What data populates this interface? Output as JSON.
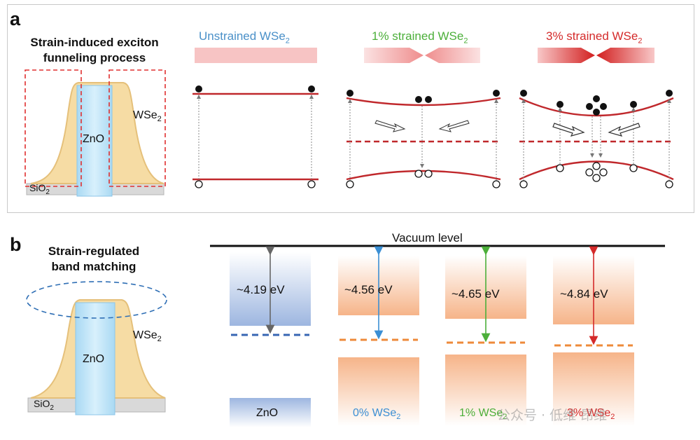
{
  "panel_a": {
    "label": "a",
    "title_line1": "Strain-induced exciton",
    "title_line2": "funneling process",
    "material_label": "WSe",
    "material_sub": "2",
    "pillar_label": "ZnO",
    "substrate_label": "SiO",
    "substrate_sub": "2",
    "states": [
      {
        "title": "Unstrained WSe",
        "sub": "2",
        "color": "#4a90c8"
      },
      {
        "title": "1% strained WSe",
        "sub": "2",
        "color": "#4caf3a"
      },
      {
        "title": "3% strained WSe",
        "sub": "2",
        "color": "#d42a2a"
      }
    ]
  },
  "panel_b": {
    "label": "b",
    "title_line1": "Strain-regulated",
    "title_line2": "band matching",
    "material_label": "WSe",
    "material_sub": "2",
    "pillar_label": "ZnO",
    "substrate_label": "SiO",
    "substrate_sub": "2",
    "vacuum_label": "Vacuum level",
    "columns": [
      {
        "energy": "~4.19 eV",
        "name": "ZnO",
        "name_sub": "",
        "arrow_color": "#666666",
        "name_color": "#111111"
      },
      {
        "energy": "~4.56 eV",
        "name": "0% WSe",
        "name_sub": "2",
        "arrow_color": "#3b8fd4",
        "name_color": "#3b8fd4"
      },
      {
        "energy": "~4.65 eV",
        "name": "1% WSe",
        "name_sub": "2",
        "arrow_color": "#4caf3a",
        "name_color": "#4caf3a"
      },
      {
        "energy": "~4.84 eV",
        "name": "3% WSe",
        "name_sub": "2",
        "arrow_color": "#d42a2a",
        "name_color": "#d42a2a"
      }
    ]
  },
  "watermark": "公众号 · 低维 昂维"
}
